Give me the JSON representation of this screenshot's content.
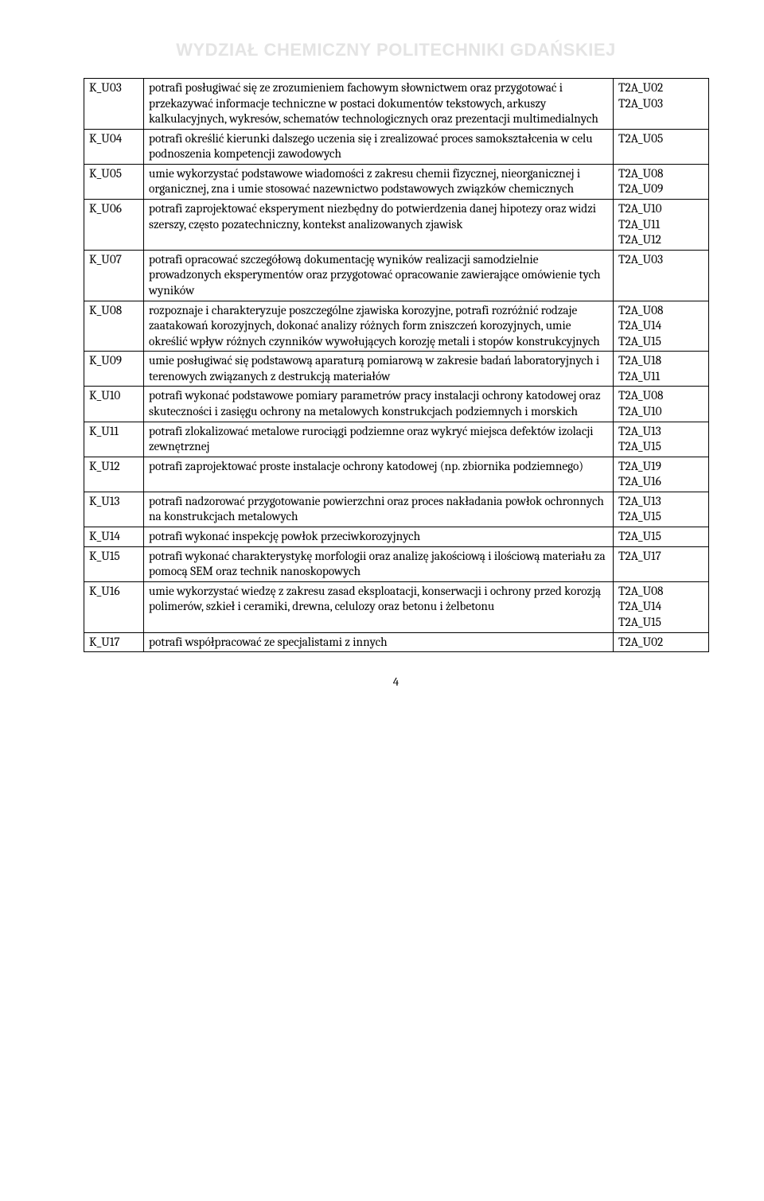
{
  "watermark": "WYDZIAŁ CHEMICZNY POLITECHNIKI GDAŃSKIEJ",
  "pageNumber": "4",
  "rows": [
    {
      "code": "K_U03",
      "desc": "potrafi posługiwać się ze zrozumieniem fachowym słownictwem oraz przygotować i przekazywać informacje techniczne w postaci dokumentów tekstowych, arkuszy kalkulacyjnych, wykresów, schematów technologicznych oraz prezentacji multimedialnych",
      "ref": "T2A_U02\nT2A_U03"
    },
    {
      "code": "K_U04",
      "desc": "potrafi określić kierunki dalszego uczenia się i zrealizować proces samokształcenia w celu podnoszenia kompetencji zawodowych",
      "ref": "T2A_U05"
    },
    {
      "code": "K_U05",
      "desc": "umie wykorzystać podstawowe wiadomości z zakresu chemii fizycznej, nieorganicznej i organicznej, zna i umie stosować nazewnictwo podstawowych związków chemicznych",
      "ref": "T2A_U08\nT2A_U09"
    },
    {
      "code": "K_U06",
      "desc": "potrafi zaprojektować eksperyment niezbędny do potwierdzenia danej hipotezy oraz widzi szerszy, często pozatechniczny, kontekst analizowanych zjawisk",
      "ref": "T2A_U10\nT2A_U11\nT2A_U12"
    },
    {
      "code": "K_U07",
      "desc": "potrafi opracować szczegółową dokumentację wyników realizacji samodzielnie prowadzonych eksperymentów oraz przygotować opracowanie zawierające omówienie tych wyników",
      "ref": "T2A_U03"
    },
    {
      "code": "K_U08",
      "desc": "rozpoznaje i charakteryzuje poszczególne zjawiska korozyjne, potrafi rozróżnić rodzaje zaatakowań korozyjnych, dokonać analizy różnych form zniszczeń korozyjnych, umie określić wpływ różnych czynników wywołujących korozję metali i stopów konstrukcyjnych",
      "ref": "T2A_U08\nT2A_U14\nT2A_U15"
    },
    {
      "code": "K_U09",
      "desc": "umie posługiwać się podstawową aparaturą pomiarową w zakresie badań laboratoryjnych i terenowych związanych z destrukcją materiałów",
      "ref": "T2A_U18\nT2A_U11"
    },
    {
      "code": "K_U10",
      "desc": "potrafi wykonać podstawowe pomiary parametrów pracy instalacji ochrony katodowej oraz skuteczności i zasięgu ochrony na metalowych konstrukcjach podziemnych i morskich",
      "ref": "T2A_U08\nT2A_U10"
    },
    {
      "code": "K_U11",
      "desc": "potrafi zlokalizować metalowe rurociągi podziemne oraz wykryć miejsca defektów izolacji zewnętrznej",
      "ref": "T2A_U13\nT2A_U15"
    },
    {
      "code": "K_U12",
      "desc": "potrafi zaprojektować proste instalacje ochrony katodowej (np. zbiornika podziemnego)",
      "ref": "T2A_U19\nT2A_U16"
    },
    {
      "code": "K_U13",
      "desc": "potrafi nadzorować przygotowanie powierzchni oraz proces nakładania powłok ochronnych na konstrukcjach metalowych",
      "ref": "T2A_U13\nT2A_U15"
    },
    {
      "code": "K_U14",
      "desc": "potrafi wykonać inspekcję powłok przeciwkorozyjnych",
      "ref": "T2A_U15"
    },
    {
      "code": "K_U15",
      "desc": "potrafi wykonać charakterystykę morfologii oraz analizę jakościową i ilościową materiału za pomocą SEM oraz technik nanoskopowych",
      "ref": "T2A_U17"
    },
    {
      "code": "K_U16",
      "desc": "umie wykorzystać wiedzę z zakresu zasad eksploatacji, konserwacji i ochrony przed korozją polimerów, szkieł i ceramiki, drewna, celulozy oraz betonu i żelbetonu",
      "ref": "T2A_U08\nT2A_U14\nT2A_U15"
    },
    {
      "code": "K_U17",
      "desc": "potrafi współpracować ze specjalistami z innych",
      "ref": "T2A_U02"
    }
  ]
}
